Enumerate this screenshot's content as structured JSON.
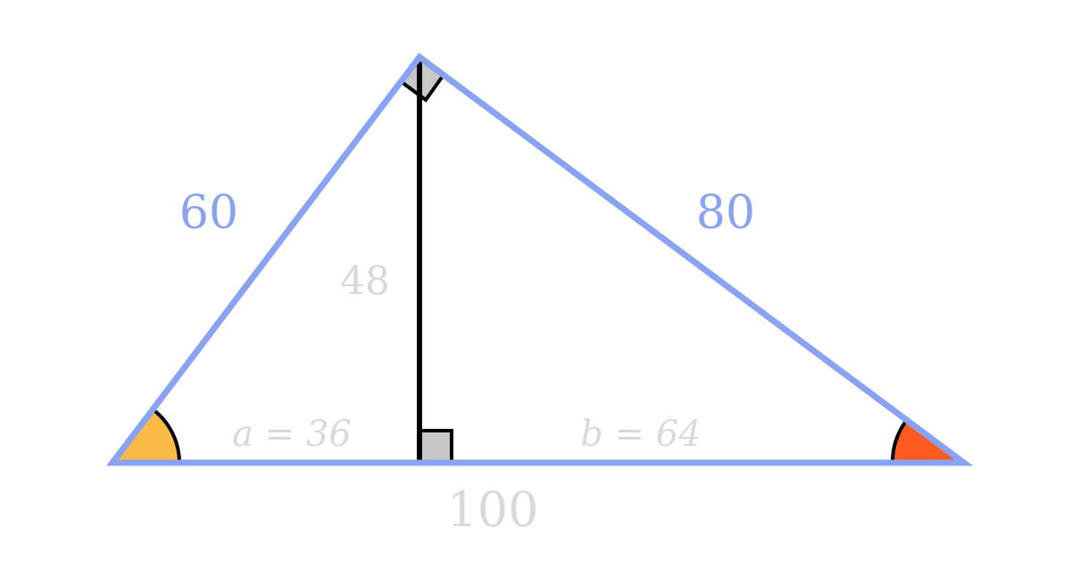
{
  "labels": {
    "left_side": "60",
    "right_side": "80",
    "altitude": "48",
    "segment_a": "a = 36",
    "segment_b": "b = 64",
    "base": "100"
  },
  "colors": {
    "triangle_outline": "#8aa2f2",
    "left_angle_fill": "#f9ba48",
    "right_angle_fill": "#ff5a1f",
    "right_angle_marker": "#c8c8c8",
    "muted_text": "#d9d9d9",
    "stroke": "#000000"
  }
}
